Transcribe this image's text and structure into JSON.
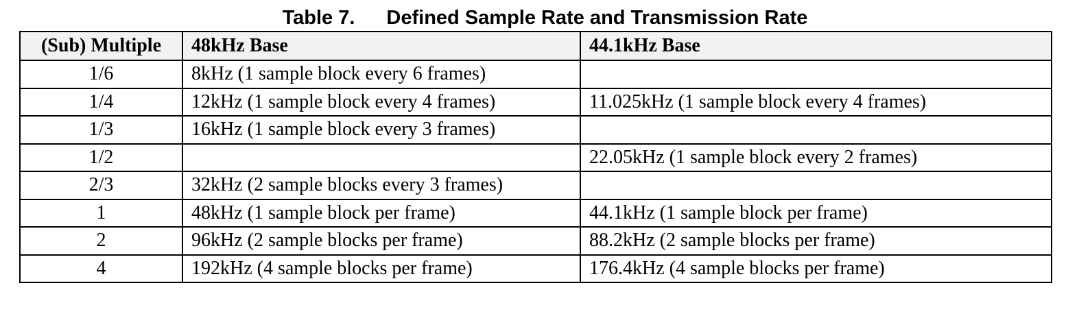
{
  "caption": {
    "number": "Table 7.",
    "title": "Defined Sample Rate and Transmission Rate"
  },
  "table": {
    "headers": [
      "(Sub) Multiple",
      "48kHz Base",
      "44.1kHz Base"
    ],
    "rows": [
      [
        "1/6",
        "8kHz (1 sample block every 6 frames)",
        ""
      ],
      [
        "1/4",
        "12kHz (1 sample block every 4 frames)",
        "11.025kHz (1 sample block every 4 frames)"
      ],
      [
        "1/3",
        "16kHz (1 sample block every 3 frames)",
        ""
      ],
      [
        "1/2",
        "",
        "22.05kHz (1 sample block every 2 frames)"
      ],
      [
        "2/3",
        "32kHz (2 sample blocks every 3 frames)",
        ""
      ],
      [
        "1",
        "48kHz (1 sample block per frame)",
        "44.1kHz (1 sample block per frame)"
      ],
      [
        "2",
        "96kHz (2 sample blocks per frame)",
        "88.2kHz (2 sample blocks per frame)"
      ],
      [
        "4",
        "192kHz (4 sample blocks per frame)",
        "176.4kHz (4 sample blocks per frame)"
      ]
    ]
  }
}
